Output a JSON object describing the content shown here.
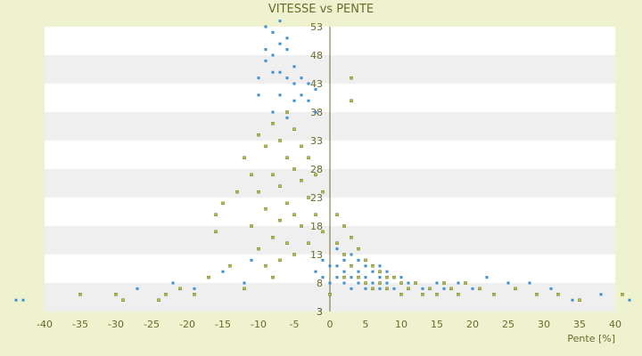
{
  "chart_data": {
    "type": "scatter",
    "title": "VITESSE vs PENTE",
    "xlabel": "Pente [%]",
    "ylabel": "",
    "xlim": [
      -40,
      40
    ],
    "ylim": [
      3,
      53
    ],
    "x_ticks": [
      -40,
      -35,
      -30,
      -25,
      -20,
      -15,
      -10,
      -5,
      0,
      5,
      10,
      15,
      20,
      25,
      30,
      35,
      40
    ],
    "y_ticks": [
      3,
      8,
      13,
      18,
      23,
      28,
      33,
      38,
      43,
      48,
      53
    ],
    "y_tick_labels_shown": [
      "3",
      "3",
      "8",
      "13",
      "18",
      "23",
      "28",
      "33",
      "38",
      "43",
      "48",
      "53"
    ],
    "grid": "horizontal alternating bands",
    "legend": "none",
    "colors": {
      "background": "#eef2cf",
      "plot_band_light": "#ffffff",
      "plot_band_dark": "#efefef",
      "series_blue": "#3a8fd6",
      "series_green": "#b6c23a",
      "axis": "#6b6b2a",
      "text": "#6b6b2a"
    },
    "series": [
      {
        "color": "#3a8fd6",
        "points": [
          [
            -44,
            5
          ],
          [
            -43,
            5
          ],
          [
            -27,
            7
          ],
          [
            -22,
            8
          ],
          [
            -19,
            7
          ],
          [
            -15,
            10
          ],
          [
            -12,
            8
          ],
          [
            -11,
            12
          ],
          [
            -10,
            44
          ],
          [
            -10,
            41
          ],
          [
            -9,
            53
          ],
          [
            -9,
            49
          ],
          [
            -9,
            47
          ],
          [
            -8,
            52
          ],
          [
            -8,
            48
          ],
          [
            -8,
            45
          ],
          [
            -8,
            38
          ],
          [
            -7,
            54
          ],
          [
            -7,
            50
          ],
          [
            -7,
            45
          ],
          [
            -7,
            41
          ],
          [
            -6,
            51
          ],
          [
            -6,
            49
          ],
          [
            -6,
            44
          ],
          [
            -6,
            37
          ],
          [
            -5,
            46
          ],
          [
            -5,
            43
          ],
          [
            -5,
            40
          ],
          [
            -4,
            44
          ],
          [
            -4,
            41
          ],
          [
            -3,
            43
          ],
          [
            -3,
            40
          ],
          [
            -2,
            42
          ],
          [
            -2,
            38
          ],
          [
            -2,
            10
          ],
          [
            -1,
            12
          ],
          [
            -1,
            9
          ],
          [
            0,
            11
          ],
          [
            0,
            8
          ],
          [
            1,
            14
          ],
          [
            1,
            11
          ],
          [
            1,
            9
          ],
          [
            2,
            12
          ],
          [
            2,
            10
          ],
          [
            2,
            8
          ],
          [
            3,
            13
          ],
          [
            3,
            11
          ],
          [
            3,
            9
          ],
          [
            3,
            7
          ],
          [
            4,
            12
          ],
          [
            4,
            10
          ],
          [
            4,
            8
          ],
          [
            5,
            11
          ],
          [
            5,
            9
          ],
          [
            5,
            7
          ],
          [
            6,
            10
          ],
          [
            6,
            8
          ],
          [
            7,
            11
          ],
          [
            7,
            9
          ],
          [
            7,
            7
          ],
          [
            8,
            10
          ],
          [
            8,
            8
          ],
          [
            9,
            9
          ],
          [
            9,
            7
          ],
          [
            10,
            9
          ],
          [
            11,
            8
          ],
          [
            12,
            8
          ],
          [
            13,
            7
          ],
          [
            14,
            7
          ],
          [
            15,
            8
          ],
          [
            16,
            7
          ],
          [
            18,
            8
          ],
          [
            20,
            7
          ],
          [
            22,
            9
          ],
          [
            25,
            8
          ],
          [
            28,
            8
          ],
          [
            31,
            7
          ],
          [
            34,
            5
          ],
          [
            38,
            6
          ],
          [
            42,
            5
          ]
        ]
      },
      {
        "color": "#b6c23a",
        "points": [
          [
            -35,
            6
          ],
          [
            -30,
            6
          ],
          [
            -29,
            5
          ],
          [
            -24,
            5
          ],
          [
            -23,
            6
          ],
          [
            -21,
            7
          ],
          [
            -19,
            6
          ],
          [
            -17,
            9
          ],
          [
            -16,
            20
          ],
          [
            -16,
            17
          ],
          [
            -15,
            22
          ],
          [
            -14,
            11
          ],
          [
            -13,
            24
          ],
          [
            -12,
            7
          ],
          [
            -12,
            30
          ],
          [
            -11,
            27
          ],
          [
            -11,
            18
          ],
          [
            -10,
            34
          ],
          [
            -10,
            24
          ],
          [
            -10,
            14
          ],
          [
            -9,
            32
          ],
          [
            -9,
            21
          ],
          [
            -9,
            11
          ],
          [
            -8,
            36
          ],
          [
            -8,
            27
          ],
          [
            -8,
            16
          ],
          [
            -8,
            9
          ],
          [
            -7,
            33
          ],
          [
            -7,
            25
          ],
          [
            -7,
            19
          ],
          [
            -7,
            12
          ],
          [
            -6,
            38
          ],
          [
            -6,
            30
          ],
          [
            -6,
            22
          ],
          [
            -6,
            15
          ],
          [
            -5,
            35
          ],
          [
            -5,
            28
          ],
          [
            -5,
            20
          ],
          [
            -5,
            13
          ],
          [
            -4,
            32
          ],
          [
            -4,
            26
          ],
          [
            -4,
            18
          ],
          [
            -3,
            30
          ],
          [
            -3,
            23
          ],
          [
            -3,
            15
          ],
          [
            -2,
            27
          ],
          [
            -2,
            20
          ],
          [
            -1,
            24
          ],
          [
            -1,
            17
          ],
          [
            0,
            6
          ],
          [
            1,
            20
          ],
          [
            1,
            15
          ],
          [
            2,
            18
          ],
          [
            2,
            13
          ],
          [
            2,
            9
          ],
          [
            3,
            44
          ],
          [
            3,
            40
          ],
          [
            3,
            16
          ],
          [
            3,
            11
          ],
          [
            4,
            14
          ],
          [
            4,
            9
          ],
          [
            5,
            12
          ],
          [
            5,
            8
          ],
          [
            6,
            11
          ],
          [
            6,
            7
          ],
          [
            7,
            10
          ],
          [
            7,
            8
          ],
          [
            8,
            9
          ],
          [
            8,
            7
          ],
          [
            9,
            9
          ],
          [
            10,
            8
          ],
          [
            10,
            6
          ],
          [
            11,
            7
          ],
          [
            12,
            8
          ],
          [
            13,
            6
          ],
          [
            14,
            7
          ],
          [
            15,
            6
          ],
          [
            16,
            8
          ],
          [
            17,
            7
          ],
          [
            18,
            6
          ],
          [
            19,
            8
          ],
          [
            21,
            7
          ],
          [
            23,
            6
          ],
          [
            26,
            7
          ],
          [
            29,
            6
          ],
          [
            32,
            6
          ],
          [
            35,
            5
          ],
          [
            41,
            6
          ]
        ]
      }
    ]
  }
}
